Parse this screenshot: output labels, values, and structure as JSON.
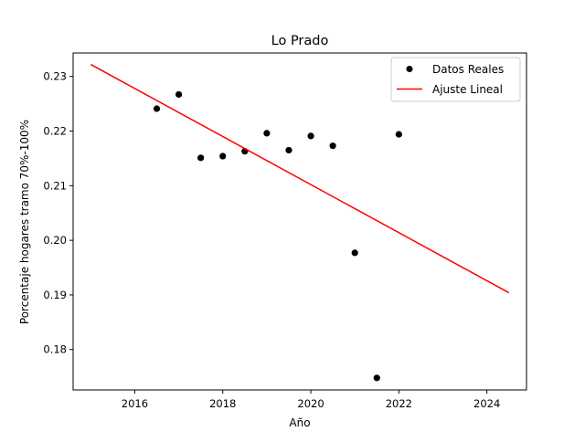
{
  "chart_data": {
    "type": "scatter",
    "title": "Lo Prado",
    "xlabel": "Año",
    "ylabel": "Porcentaje hogares tramo 70%-100%",
    "xlim": [
      2014.6,
      2024.9
    ],
    "ylim": [
      0.1726,
      0.2343
    ],
    "xticks": [
      2016,
      2018,
      2020,
      2022,
      2024
    ],
    "yticks": [
      0.18,
      0.19,
      0.2,
      0.21,
      0.22,
      0.23
    ],
    "grid": false,
    "legend_position": "top-right",
    "series": [
      {
        "name": "Datos Reales",
        "kind": "scatter",
        "color": "#000000",
        "points": [
          {
            "x": 2016.5,
            "y": 0.2241
          },
          {
            "x": 2017.0,
            "y": 0.2267
          },
          {
            "x": 2017.5,
            "y": 0.2151
          },
          {
            "x": 2018.0,
            "y": 0.2154
          },
          {
            "x": 2018.5,
            "y": 0.2163
          },
          {
            "x": 2019.0,
            "y": 0.2196
          },
          {
            "x": 2019.5,
            "y": 0.2165
          },
          {
            "x": 2020.0,
            "y": 0.2191
          },
          {
            "x": 2020.5,
            "y": 0.2173
          },
          {
            "x": 2021.0,
            "y": 0.1977
          },
          {
            "x": 2021.5,
            "y": 0.1748
          },
          {
            "x": 2022.0,
            "y": 0.2194
          }
        ]
      },
      {
        "name": "Ajuste Lineal",
        "kind": "line",
        "color": "#ff0000",
        "points": [
          {
            "x": 2015.0,
            "y": 0.2322
          },
          {
            "x": 2024.5,
            "y": 0.1904
          }
        ]
      }
    ]
  }
}
